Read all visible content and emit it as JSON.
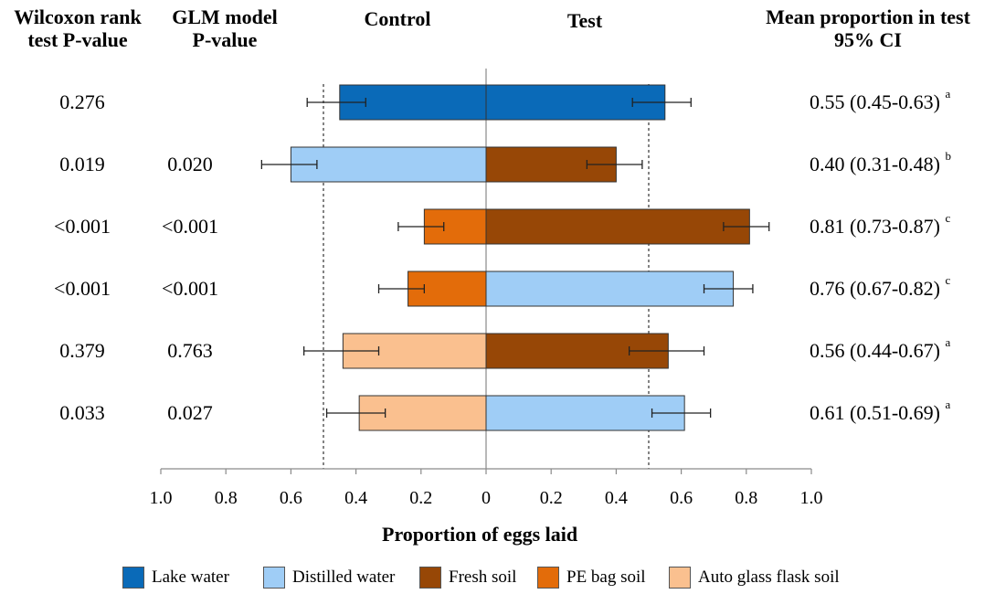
{
  "headers": {
    "wilcoxon": [
      "Wilcoxon rank",
      "test P-value"
    ],
    "glm": [
      "GLM model",
      "P-value"
    ],
    "control": "Control",
    "test": "Test",
    "mean": [
      "Mean proportion in test",
      "95% CI"
    ]
  },
  "rows": [
    {
      "wilcoxon": "0.276",
      "glm": "",
      "ci_text": "0.55 (0.45-0.63)",
      "letter": "a"
    },
    {
      "wilcoxon": "0.019",
      "glm": "0.020",
      "ci_text": "0.40 (0.31-0.48)",
      "letter": "b"
    },
    {
      "wilcoxon": "<0.001",
      "glm": "<0.001",
      "ci_text": "0.81 (0.73-0.87)",
      "letter": "c"
    },
    {
      "wilcoxon": "<0.001",
      "glm": "<0.001",
      "ci_text": "0.76 (0.67-0.82)",
      "letter": "c"
    },
    {
      "wilcoxon": "0.379",
      "glm": "0.763",
      "ci_text": "0.56 (0.44-0.67)",
      "letter": "a"
    },
    {
      "wilcoxon": "0.033",
      "glm": "0.027",
      "ci_text": "0.61 (0.51-0.69)",
      "letter": "a"
    }
  ],
  "chart_data": {
    "type": "bar",
    "orientation": "horizontal-diverging",
    "xlabel": "Proportion of eggs laid",
    "x_ticks": [
      "1.0",
      "0.8",
      "0.6",
      "0.4",
      "0.2",
      "0",
      "0.2",
      "0.4",
      "0.6",
      "0.8",
      "1.0"
    ],
    "xlim": [
      -1.0,
      1.0
    ],
    "reference_lines": [
      -0.5,
      0.5
    ],
    "series": [
      {
        "name": "Control",
        "values": [
          0.45,
          0.6,
          0.19,
          0.24,
          0.44,
          0.39
        ],
        "ci_low": [
          0.37,
          0.52,
          0.13,
          0.19,
          0.33,
          0.31
        ],
        "ci_high": [
          0.55,
          0.69,
          0.27,
          0.33,
          0.56,
          0.49
        ],
        "colors": [
          "#0a6ab8",
          "#9fcdf6",
          "#e36c0a",
          "#e36c0a",
          "#fac08f",
          "#fac08f"
        ]
      },
      {
        "name": "Test",
        "values": [
          0.55,
          0.4,
          0.81,
          0.76,
          0.56,
          0.61
        ],
        "ci_low": [
          0.45,
          0.31,
          0.73,
          0.67,
          0.44,
          0.51
        ],
        "ci_high": [
          0.63,
          0.48,
          0.87,
          0.82,
          0.67,
          0.69
        ],
        "colors": [
          "#0a6ab8",
          "#974706",
          "#974706",
          "#9fcdf6",
          "#974706",
          "#9fcdf6"
        ]
      }
    ],
    "legend": [
      {
        "label": "Lake water",
        "color": "#0a6ab8"
      },
      {
        "label": "Distilled water",
        "color": "#9fcdf6"
      },
      {
        "label": "Fresh soil",
        "color": "#974706"
      },
      {
        "label": "PE bag soil",
        "color": "#e36c0a"
      },
      {
        "label": "Auto glass flask soil",
        "color": "#fac08f"
      }
    ],
    "legend_position": "bottom"
  }
}
